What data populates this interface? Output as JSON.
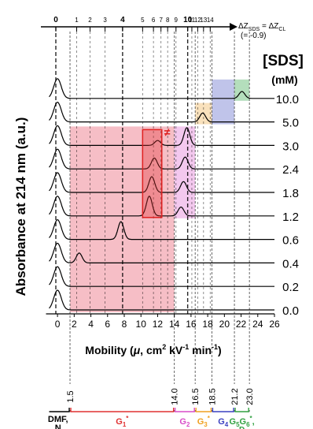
{
  "chart_data": {
    "type": "line",
    "ylabel": "Absorbance at 214 nm (a.u.)",
    "xlabel_parts": [
      "Mobility (",
      "μ",
      ", cm",
      "2",
      " kV",
      "-1",
      " min",
      "-1",
      ")"
    ],
    "xlim": [
      -1,
      26
    ],
    "x_ticks": [
      "0",
      "2",
      "4",
      "6",
      "8",
      "10",
      "12",
      "14",
      "16",
      "18",
      "20",
      "22",
      "24",
      "26"
    ],
    "top_axis": {
      "ticks": [
        "0",
        "1",
        "2",
        "3",
        "4",
        "5",
        "6",
        "7",
        "8",
        "9",
        "10",
        "11",
        "12",
        "13",
        "14"
      ],
      "arrow_label": "ΔZSDS = ΔZCL",
      "arrow_sublabel": "(= -0.9)",
      "tick_mobility": [
        -0.2,
        2.3,
        3.9,
        5.7,
        7.8,
        10.2,
        11.5,
        12.4,
        13.2,
        14.2,
        15.6,
        16.1,
        16.8,
        17.5,
        18.3
      ]
    },
    "concentration_header": "[SDS]",
    "concentration_unit": "(mM)",
    "series": [
      {
        "name": "10.0",
        "peaks": [
          [
            0,
            1.0
          ],
          [
            22.1,
            0.35
          ]
        ]
      },
      {
        "name": "5.0",
        "peaks": [
          [
            0,
            1.0
          ],
          [
            17.4,
            0.45
          ]
        ]
      },
      {
        "name": "3.0",
        "peaks": [
          [
            0,
            1.0
          ],
          [
            12.0,
            0.25
          ],
          [
            15.5,
            0.9
          ]
        ]
      },
      {
        "name": "2.4",
        "peaks": [
          [
            0,
            1.0
          ],
          [
            11.6,
            0.55
          ],
          [
            15.3,
            0.6
          ]
        ]
      },
      {
        "name": "1.8",
        "peaks": [
          [
            0,
            1.0
          ],
          [
            11.3,
            0.8
          ],
          [
            15.1,
            0.55
          ]
        ]
      },
      {
        "name": "1.2",
        "peaks": [
          [
            0,
            1.0
          ],
          [
            11.0,
            1.0
          ],
          [
            14.8,
            0.45
          ]
        ]
      },
      {
        "name": "0.6",
        "peaks": [
          [
            0,
            1.0
          ],
          [
            7.6,
            0.9
          ]
        ]
      },
      {
        "name": "0.4",
        "peaks": [
          [
            0,
            1.0
          ],
          [
            2.6,
            0.5
          ]
        ]
      },
      {
        "name": "0.2",
        "peaks": [
          [
            0,
            1.0
          ]
        ]
      },
      {
        "name": "0.0",
        "peaks": [
          [
            0,
            1.0
          ]
        ]
      }
    ],
    "grid": false
  },
  "regions": [
    {
      "color": "#e8556a",
      "x": [
        1.5,
        14.0
      ],
      "series_span": [
        "3.0",
        "0.0"
      ]
    },
    {
      "color": "#e06ed2",
      "x": [
        14.0,
        16.5
      ],
      "series_span": [
        "3.0",
        "1.2"
      ]
    },
    {
      "color": "#f0b050",
      "x": [
        16.5,
        18.5
      ],
      "series_span": [
        "5.0",
        "5.0"
      ]
    },
    {
      "color": "#5a64c8",
      "x": [
        18.5,
        21.2
      ],
      "series_span": [
        "10.0",
        "5.0"
      ]
    },
    {
      "color": "#3aa84e",
      "x": [
        21.2,
        23.0
      ],
      "series_span": [
        "10.0",
        "10.0"
      ]
    }
  ],
  "highlight": {
    "x": [
      10.2,
      12.5
    ],
    "series_span": [
      "3.0",
      "1.2"
    ],
    "color": "#e02020",
    "mark": "≠"
  },
  "bottom_scale": {
    "boundaries": [
      "1.5",
      "14.0",
      "16.5",
      "18.5",
      "21.2",
      "23.0"
    ],
    "segments": [
      {
        "label": "DMF,",
        "label2": "N",
        "color": "#000000",
        "from": -1,
        "to": 1.5
      },
      {
        "label": "G",
        "sub": "1",
        "sup": "*",
        "color": "#e03030",
        "from": 1.5,
        "to": 14.0
      },
      {
        "label": "G",
        "sub": "2",
        "sup": "",
        "color": "#d84cc8",
        "from": 14.0,
        "to": 16.5
      },
      {
        "label": "G",
        "sub": "3",
        "sup": "*",
        "color": "#f0a020",
        "from": 16.5,
        "to": 18.5
      },
      {
        "label": "G",
        "sub": "4",
        "sup": "",
        "color": "#3a40c0",
        "from": 18.5,
        "to": 21.2
      },
      {
        "label": "G",
        "sub": "5",
        "sup": "",
        "label_b": "G",
        "sub_b": "6",
        "sup_b": "*",
        "extra": "D",
        "color": "#30a040",
        "from": 21.2,
        "to": 23.0
      }
    ]
  },
  "colors": {
    "axis": "#000000",
    "trace": "#000000"
  }
}
